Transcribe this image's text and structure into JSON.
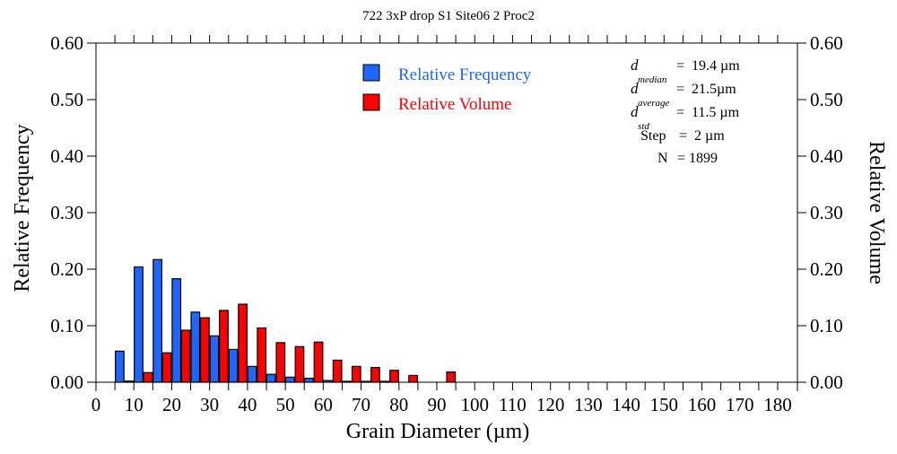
{
  "chart_data": {
    "type": "bar",
    "title": "722 3xP drop S1 Site06 2 Proc2",
    "xlabel": "Grain Diameter (µm)",
    "ylabel": "Relative Frequency",
    "y2label": "Relative Volume",
    "xlim": [
      0,
      185
    ],
    "ylim": [
      0,
      0.6
    ],
    "y2lim": [
      0,
      0.6
    ],
    "xticks": [
      0,
      10,
      20,
      30,
      40,
      50,
      60,
      70,
      80,
      90,
      100,
      110,
      120,
      130,
      140,
      150,
      160,
      170,
      180
    ],
    "yticks": [
      "0.00",
      "0.10",
      "0.20",
      "0.30",
      "0.40",
      "0.50",
      "0.60"
    ],
    "bin_width": 5,
    "bin_starts": [
      5,
      10,
      15,
      20,
      25,
      30,
      35,
      40,
      45,
      50,
      55,
      60,
      65,
      70,
      75,
      80,
      85,
      90
    ],
    "series": [
      {
        "name": "Relative Frequency",
        "color": "#1f66ff",
        "values": [
          0.055,
          0.204,
          0.217,
          0.183,
          0.124,
          0.082,
          0.058,
          0.028,
          0.014,
          0.009,
          0.007,
          0.003,
          0.001,
          0.001,
          0.001,
          0,
          0,
          0
        ]
      },
      {
        "name": "Relative Volume",
        "color": "#ff0000",
        "values": [
          0.002,
          0.017,
          0.052,
          0.092,
          0.114,
          0.127,
          0.138,
          0.096,
          0.07,
          0.063,
          0.071,
          0.039,
          0.028,
          0.026,
          0.021,
          0.012,
          0,
          0.018
        ]
      }
    ],
    "legend": {
      "position": "top-center"
    },
    "stats": [
      {
        "label": "d",
        "sub": "median",
        "value": "=  19.4 µm"
      },
      {
        "label": "d",
        "sub": "average",
        "value": "=  21.5µm"
      },
      {
        "label": "d",
        "sub": "std",
        "value": "=  11.5 µm"
      },
      {
        "label": "Step",
        "sub": "",
        "value": "=  2 µm"
      },
      {
        "label": "N",
        "sub": "",
        "value": "= 1899"
      }
    ]
  }
}
